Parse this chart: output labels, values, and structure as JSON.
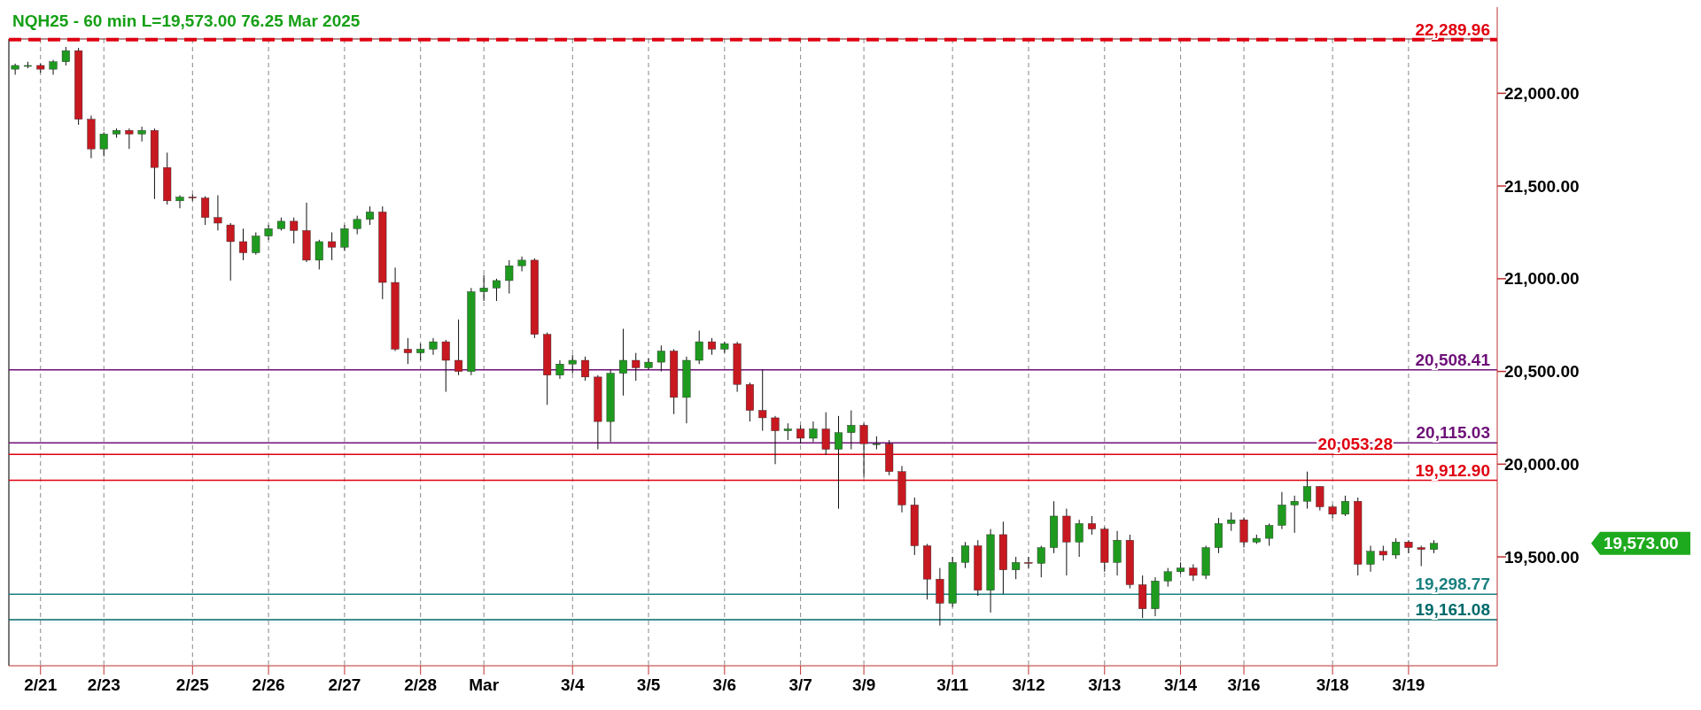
{
  "chart_data": {
    "type": "candlestick",
    "title": "NQH25 - 60 min L=19,573.00 76.25 Mar 2025",
    "categories": [
      null,
      null,
      "2/21",
      null,
      null,
      null,
      null,
      "2/23",
      null,
      null,
      null,
      null,
      null,
      null,
      "2/25",
      null,
      null,
      null,
      null,
      null,
      "2/26",
      null,
      null,
      null,
      null,
      null,
      "2/27",
      null,
      null,
      null,
      null,
      null,
      "2/28",
      null,
      null,
      null,
      null,
      "Mar",
      null,
      null,
      null,
      null,
      null,
      null,
      "3/4",
      null,
      null,
      null,
      null,
      null,
      "3/5",
      null,
      null,
      null,
      null,
      null,
      "3/6",
      null,
      null,
      null,
      null,
      null,
      "3/7",
      null,
      null,
      null,
      null,
      "3/9",
      null,
      null,
      null,
      null,
      null,
      null,
      "3/11",
      null,
      null,
      null,
      null,
      null,
      "3/12",
      null,
      null,
      null,
      null,
      null,
      "3/13",
      null,
      null,
      null,
      null,
      null,
      "3/14",
      null,
      null,
      null,
      null,
      "3/16",
      null,
      null,
      null,
      null,
      null,
      null,
      "3/18",
      null,
      null,
      null,
      null,
      null,
      "3/19",
      null,
      null
    ],
    "ohlc": [
      [
        22130,
        22160,
        22100,
        22150
      ],
      [
        22145,
        22170,
        22135,
        22150
      ],
      [
        22150,
        22160,
        22110,
        22130
      ],
      [
        22130,
        22180,
        22100,
        22170
      ],
      [
        22170,
        22250,
        22150,
        22230
      ],
      [
        22230,
        22245,
        21830,
        21860
      ],
      [
        21860,
        21880,
        21650,
        21700
      ],
      [
        21700,
        21790,
        21660,
        21780
      ],
      [
        21780,
        21810,
        21760,
        21800
      ],
      [
        21800,
        21810,
        21700,
        21780
      ],
      [
        21780,
        21820,
        21740,
        21800
      ],
      [
        21800,
        21810,
        21430,
        21600
      ],
      [
        21600,
        21680,
        21400,
        21420
      ],
      [
        21420,
        21450,
        21380,
        21440
      ],
      [
        21440,
        21455,
        21420,
        21435
      ],
      [
        21435,
        21445,
        21290,
        21330
      ],
      [
        21330,
        21450,
        21260,
        21300
      ],
      [
        21290,
        21300,
        20990,
        21200
      ],
      [
        21200,
        21270,
        21100,
        21140
      ],
      [
        21140,
        21250,
        21130,
        21230
      ],
      [
        21230,
        21290,
        21210,
        21270
      ],
      [
        21270,
        21330,
        21260,
        21310
      ],
      [
        21310,
        21330,
        21190,
        21260
      ],
      [
        21260,
        21410,
        21090,
        21100
      ],
      [
        21100,
        21210,
        21050,
        21200
      ],
      [
        21200,
        21250,
        21100,
        21170
      ],
      [
        21170,
        21290,
        21150,
        21270
      ],
      [
        21270,
        21340,
        21240,
        21320
      ],
      [
        21320,
        21390,
        21290,
        21360
      ],
      [
        21360,
        21390,
        20890,
        20980
      ],
      [
        20980,
        21060,
        20610,
        20620
      ],
      [
        20620,
        20680,
        20540,
        20600
      ],
      [
        20600,
        20650,
        20560,
        20620
      ],
      [
        20620,
        20680,
        20590,
        20660
      ],
      [
        20660,
        20670,
        20390,
        20560
      ],
      [
        20560,
        20780,
        20480,
        20500
      ],
      [
        20500,
        20950,
        20480,
        20930
      ],
      [
        20930,
        21020,
        20880,
        20950
      ],
      [
        20950,
        21000,
        20880,
        20990
      ],
      [
        20990,
        21100,
        20920,
        21070
      ],
      [
        21070,
        21120,
        21040,
        21100
      ],
      [
        21100,
        21110,
        20680,
        20700
      ],
      [
        20700,
        20710,
        20320,
        20480
      ],
      [
        20480,
        20560,
        20460,
        20540
      ],
      [
        20540,
        20590,
        20490,
        20560
      ],
      [
        20560,
        20580,
        20450,
        20470
      ],
      [
        20470,
        20480,
        20080,
        20230
      ],
      [
        20230,
        20510,
        20120,
        20490
      ],
      [
        20490,
        20730,
        20370,
        20560
      ],
      [
        20560,
        20600,
        20450,
        20520
      ],
      [
        20520,
        20570,
        20510,
        20550
      ],
      [
        20550,
        20640,
        20500,
        20610
      ],
      [
        20610,
        20620,
        20270,
        20360
      ],
      [
        20360,
        20580,
        20220,
        20560
      ],
      [
        20560,
        20720,
        20540,
        20660
      ],
      [
        20660,
        20680,
        20590,
        20620
      ],
      [
        20620,
        20660,
        20600,
        20650
      ],
      [
        20650,
        20660,
        20390,
        20430
      ],
      [
        20430,
        20440,
        20230,
        20290
      ],
      [
        20290,
        20510,
        20180,
        20250
      ],
      [
        20250,
        20260,
        20000,
        20180
      ],
      [
        20180,
        20220,
        20130,
        20190
      ],
      [
        20190,
        20210,
        20110,
        20140
      ],
      [
        20140,
        20230,
        20120,
        20190
      ],
      [
        20190,
        20280,
        20050,
        20080
      ],
      [
        20080,
        20260,
        19760,
        20170
      ],
      [
        20170,
        20290,
        20080,
        20210
      ],
      [
        20210,
        20220,
        19930,
        20110
      ],
      [
        20110,
        20150,
        20080,
        20110
      ],
      [
        20110,
        20130,
        19940,
        19960
      ],
      [
        19960,
        19990,
        19740,
        19780
      ],
      [
        19780,
        19820,
        19510,
        19560
      ],
      [
        19560,
        19570,
        19270,
        19380
      ],
      [
        19380,
        19440,
        19130,
        19250
      ],
      [
        19250,
        19500,
        19230,
        19470
      ],
      [
        19470,
        19580,
        19440,
        19560
      ],
      [
        19560,
        19590,
        19290,
        19320
      ],
      [
        19320,
        19650,
        19200,
        19620
      ],
      [
        19620,
        19690,
        19300,
        19430
      ],
      [
        19430,
        19500,
        19380,
        19470
      ],
      [
        19470,
        19500,
        19440,
        19465
      ],
      [
        19465,
        19560,
        19390,
        19550
      ],
      [
        19550,
        19800,
        19520,
        19720
      ],
      [
        19720,
        19760,
        19400,
        19580
      ],
      [
        19580,
        19700,
        19500,
        19680
      ],
      [
        19680,
        19720,
        19620,
        19650
      ],
      [
        19650,
        19660,
        19420,
        19470
      ],
      [
        19470,
        19640,
        19400,
        19590
      ],
      [
        19590,
        19620,
        19330,
        19350
      ],
      [
        19350,
        19400,
        19170,
        19220
      ],
      [
        19220,
        19390,
        19180,
        19370
      ],
      [
        19370,
        19440,
        19340,
        19420
      ],
      [
        19420,
        19470,
        19410,
        19440
      ],
      [
        19440,
        19460,
        19370,
        19400
      ],
      [
        19400,
        19560,
        19380,
        19550
      ],
      [
        19550,
        19710,
        19520,
        19680
      ],
      [
        19680,
        19740,
        19640,
        19700
      ],
      [
        19700,
        19710,
        19550,
        19580
      ],
      [
        19580,
        19620,
        19570,
        19600
      ],
      [
        19600,
        19680,
        19560,
        19670
      ],
      [
        19670,
        19850,
        19650,
        19780
      ],
      [
        19780,
        19830,
        19630,
        19800
      ],
      [
        19800,
        19960,
        19760,
        19880
      ],
      [
        19880,
        19880,
        19750,
        19770
      ],
      [
        19770,
        19780,
        19710,
        19730
      ],
      [
        19730,
        19830,
        19720,
        19800
      ],
      [
        19800,
        19820,
        19400,
        19460
      ],
      [
        19460,
        19560,
        19420,
        19530
      ],
      [
        19530,
        19560,
        19480,
        19510
      ],
      [
        19510,
        19600,
        19490,
        19580
      ],
      [
        19580,
        19590,
        19520,
        19550
      ],
      [
        19550,
        19560,
        19450,
        19540
      ],
      [
        19540,
        19590,
        19520,
        19573
      ]
    ],
    "ylim": [
      18913,
      22293
    ],
    "yticks": [
      {
        "value": 19500,
        "label": "19,500.00"
      },
      {
        "value": 20000,
        "label": "20,000.00"
      },
      {
        "value": 20500,
        "label": "20,500.00"
      },
      {
        "value": 21000,
        "label": "21,000.00"
      },
      {
        "value": 21500,
        "label": "21,500.00"
      },
      {
        "value": 22000,
        "label": "22,000.00"
      }
    ],
    "grid": "x",
    "ref_lines": [
      {
        "axis": "y",
        "value": 22289.96,
        "label": "22,289.96",
        "color": "#e00010",
        "line_style": "dashed"
      },
      {
        "axis": "y",
        "value": 20508.41,
        "label": "20,508.41",
        "color": "#6e1078"
      },
      {
        "axis": "y",
        "value": 20115.03,
        "label": "20,115.03",
        "color": "#6e1078"
      },
      {
        "axis": "y",
        "value": 20053.28,
        "label": "20,053.28",
        "color": "#e00010"
      },
      {
        "axis": "y",
        "value": 19912.9,
        "label": "19,912.90",
        "color": "#e00010"
      },
      {
        "axis": "y",
        "value": 19298.77,
        "label": "19,298.77",
        "color": "#1a8080"
      },
      {
        "axis": "y",
        "value": 19161.08,
        "label": "19,161.08",
        "color": "#006a6a"
      }
    ],
    "annotations": [
      "19,573.00"
    ]
  }
}
